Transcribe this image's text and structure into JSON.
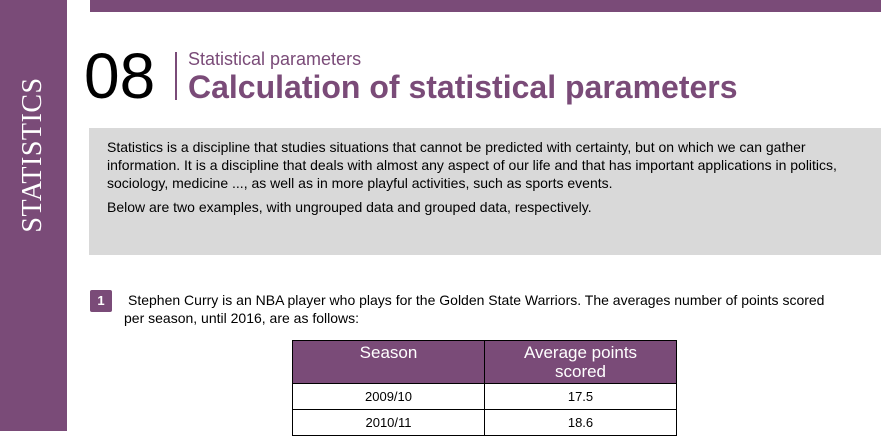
{
  "sidebar": {
    "label": "STATISTICS"
  },
  "header": {
    "number": "08",
    "subtitle": "Statistical parameters",
    "title": "Calculation of statistical parameters"
  },
  "intro": {
    "paragraphs": [
      "Statistics is a discipline that studies situations that cannot be predicted with certainty, but on which we can gather information. It is a discipline that deals with almost any aspect of our life and that has important applications in politics, sociology, medicine ..., as well as in more playful activities, such as sports events.",
      "Below are two examples, with ungrouped data and grouped data, respectively."
    ]
  },
  "example": {
    "number": "1",
    "text": "Stephen Curry is an NBA player who plays for the Golden State Warriors. The averages number of points scored per season, until 2016, are as follows:"
  },
  "table": {
    "columns": [
      "Season",
      "Average points scored"
    ],
    "rows": [
      [
        "2009/10",
        "17.5"
      ],
      [
        "2010/11",
        "18.6"
      ]
    ]
  }
}
